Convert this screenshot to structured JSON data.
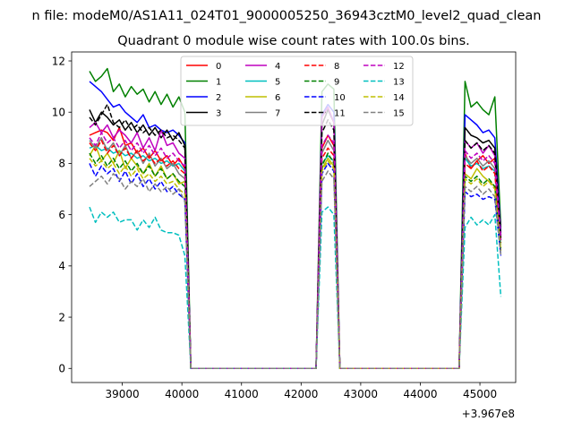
{
  "figure": {
    "suptitle": "n file: modeM0/AS1A11_024T01_9000005250_36943cztM0_level2_quad_clean",
    "title": "Quadrant 0 module wise count rates with 100.0s bins.",
    "offset_label": "+3.967e8"
  },
  "chart_data": {
    "type": "line",
    "title": "Quadrant 0 module wise count rates with 100.0s bins.",
    "xlabel": "",
    "ylabel": "",
    "x_offset": 396700000,
    "xlim": [
      38150,
      45600
    ],
    "ylim": [
      -0.55,
      12.35
    ],
    "x_ticks": [
      39000,
      40000,
      41000,
      42000,
      43000,
      44000,
      45000
    ],
    "x_tick_labels": [
      "39000",
      "40000",
      "41000",
      "42000",
      "43000",
      "44000",
      "45000"
    ],
    "y_ticks": [
      0,
      2,
      4,
      6,
      8,
      10,
      12
    ],
    "y_tick_labels": [
      "0",
      "2",
      "4",
      "6",
      "8",
      "10",
      "12"
    ],
    "grid": false,
    "legend": {
      "placement": "top-center",
      "columns": 4
    },
    "x": [
      38450,
      38550,
      38650,
      38750,
      38850,
      38950,
      39050,
      39150,
      39250,
      39350,
      39450,
      39550,
      39650,
      39750,
      39850,
      39950,
      40050,
      40150,
      40250,
      40350,
      40450,
      40550,
      40650,
      40750,
      40850,
      40950,
      41050,
      41150,
      41250,
      41350,
      41450,
      41550,
      41650,
      41750,
      41850,
      41950,
      42050,
      42150,
      42250,
      42350,
      42450,
      42550,
      42650,
      42750,
      42850,
      42950,
      43050,
      43150,
      43250,
      43350,
      43450,
      43550,
      43650,
      43750,
      43850,
      43950,
      44050,
      44150,
      44250,
      44350,
      44450,
      44550,
      44650,
      44750,
      44850,
      44950,
      45050,
      45150,
      45250,
      45350
    ],
    "series": [
      {
        "name": "0",
        "color": "#ff0000",
        "dash": "solid",
        "values": [
          9.1,
          9.2,
          9.3,
          9.2,
          8.9,
          9.4,
          8.7,
          8.8,
          8.4,
          8.6,
          8.2,
          8.5,
          8.1,
          8.3,
          7.9,
          8.2,
          7.8,
          0,
          0,
          0,
          0,
          0,
          0,
          0,
          0,
          0,
          0,
          0,
          0,
          0,
          0,
          0,
          0,
          0,
          0,
          0,
          0,
          0,
          0,
          8.6,
          9.1,
          8.7,
          0,
          0,
          0,
          0,
          0,
          0,
          0,
          0,
          0,
          0,
          0,
          0,
          0,
          0,
          0,
          0,
          0,
          0,
          0,
          0,
          0,
          8.4,
          7.8,
          8.1,
          8.3,
          8.0,
          8.2,
          5.6
        ]
      },
      {
        "name": "1",
        "color": "#008000",
        "dash": "solid",
        "values": [
          11.6,
          11.2,
          11.4,
          11.7,
          10.8,
          11.1,
          10.6,
          11.0,
          10.7,
          10.9,
          10.4,
          10.8,
          10.3,
          10.7,
          10.2,
          10.6,
          10.0,
          0,
          0,
          0,
          0,
          0,
          0,
          0,
          0,
          0,
          0,
          0,
          0,
          0,
          0,
          0,
          0,
          0,
          0,
          0,
          0,
          0,
          0,
          10.8,
          11.1,
          10.9,
          0,
          0,
          0,
          0,
          0,
          0,
          0,
          0,
          0,
          0,
          0,
          0,
          0,
          0,
          0,
          0,
          0,
          0,
          0,
          0,
          0,
          11.2,
          10.2,
          10.4,
          10.1,
          9.9,
          10.6,
          5.5
        ]
      },
      {
        "name": "2",
        "color": "#0000ff",
        "dash": "solid",
        "values": [
          11.2,
          11.0,
          10.8,
          10.5,
          10.2,
          10.3,
          10.0,
          9.8,
          9.6,
          9.9,
          9.4,
          9.5,
          9.3,
          9.2,
          9.3,
          9.1,
          8.8,
          0,
          0,
          0,
          0,
          0,
          0,
          0,
          0,
          0,
          0,
          0,
          0,
          0,
          0,
          0,
          0,
          0,
          0,
          0,
          0,
          0,
          0,
          9.9,
          10.3,
          10.0,
          0,
          0,
          0,
          0,
          0,
          0,
          0,
          0,
          0,
          0,
          0,
          0,
          0,
          0,
          0,
          0,
          0,
          0,
          0,
          0,
          0,
          9.9,
          9.7,
          9.5,
          9.2,
          9.3,
          9.0,
          5.3
        ]
      },
      {
        "name": "3",
        "color": "#000000",
        "dash": "solid",
        "values": [
          10.1,
          9.6,
          10.0,
          9.8,
          9.5,
          9.7,
          9.3,
          9.6,
          9.2,
          9.5,
          9.1,
          9.4,
          9.0,
          9.3,
          8.9,
          9.2,
          8.7,
          0,
          0,
          0,
          0,
          0,
          0,
          0,
          0,
          0,
          0,
          0,
          0,
          0,
          0,
          0,
          0,
          0,
          0,
          0,
          0,
          0,
          0,
          9.5,
          10.1,
          9.6,
          0,
          0,
          0,
          0,
          0,
          0,
          0,
          0,
          0,
          0,
          0,
          0,
          0,
          0,
          0,
          0,
          0,
          0,
          0,
          0,
          0,
          9.4,
          9.1,
          9.0,
          8.8,
          8.9,
          8.6,
          5.2
        ]
      },
      {
        "name": "4",
        "color": "#bf00bf",
        "dash": "solid",
        "values": [
          9.4,
          9.6,
          9.2,
          9.5,
          9.0,
          9.3,
          9.1,
          8.8,
          9.2,
          8.6,
          9.0,
          8.5,
          9.3,
          8.7,
          8.8,
          8.4,
          8.2,
          0,
          0,
          0,
          0,
          0,
          0,
          0,
          0,
          0,
          0,
          0,
          0,
          0,
          0,
          0,
          0,
          0,
          0,
          0,
          0,
          0,
          0,
          9.8,
          10.2,
          9.6,
          0,
          0,
          0,
          0,
          0,
          0,
          0,
          0,
          0,
          0,
          0,
          0,
          0,
          0,
          0,
          0,
          0,
          0,
          0,
          0,
          0,
          8.9,
          8.6,
          8.8,
          8.4,
          8.7,
          8.3,
          5.2
        ]
      },
      {
        "name": "5",
        "color": "#00bfbf",
        "dash": "solid",
        "values": [
          8.6,
          8.7,
          8.5,
          8.6,
          8.4,
          8.5,
          8.3,
          8.4,
          8.2,
          8.3,
          8.1,
          8.2,
          8.0,
          8.1,
          7.9,
          8.0,
          7.7,
          0,
          0,
          0,
          0,
          0,
          0,
          0,
          0,
          0,
          0,
          0,
          0,
          0,
          0,
          0,
          0,
          0,
          0,
          0,
          0,
          0,
          0,
          8.0,
          8.3,
          8.1,
          0,
          0,
          0,
          0,
          0,
          0,
          0,
          0,
          0,
          0,
          0,
          0,
          0,
          0,
          0,
          0,
          0,
          0,
          0,
          0,
          0,
          8.2,
          7.9,
          8.0,
          7.8,
          7.9,
          7.7,
          5.0
        ]
      },
      {
        "name": "6",
        "color": "#bfbf00",
        "dash": "solid",
        "values": [
          8.3,
          8.7,
          8.1,
          8.4,
          8.0,
          8.5,
          7.8,
          8.2,
          7.9,
          7.6,
          8.0,
          7.5,
          7.9,
          7.4,
          7.6,
          7.2,
          7.3,
          0,
          0,
          0,
          0,
          0,
          0,
          0,
          0,
          0,
          0,
          0,
          0,
          0,
          0,
          0,
          0,
          0,
          0,
          0,
          0,
          0,
          0,
          7.8,
          8.2,
          7.9,
          0,
          0,
          0,
          0,
          0,
          0,
          0,
          0,
          0,
          0,
          0,
          0,
          0,
          0,
          0,
          0,
          0,
          0,
          0,
          0,
          0,
          7.6,
          7.4,
          7.8,
          7.5,
          7.3,
          7.1,
          4.6
        ]
      },
      {
        "name": "7",
        "color": "#808080",
        "dash": "solid",
        "values": [
          8.9,
          8.6,
          9.0,
          8.5,
          8.8,
          8.3,
          8.7,
          8.2,
          8.5,
          8.0,
          8.4,
          7.9,
          8.2,
          7.8,
          8.0,
          7.6,
          7.4,
          0,
          0,
          0,
          0,
          0,
          0,
          0,
          0,
          0,
          0,
          0,
          0,
          0,
          0,
          0,
          0,
          0,
          0,
          0,
          0,
          0,
          0,
          8.4,
          8.9,
          8.5,
          0,
          0,
          0,
          0,
          0,
          0,
          0,
          0,
          0,
          0,
          0,
          0,
          0,
          0,
          0,
          0,
          0,
          0,
          0,
          0,
          0,
          8.3,
          8.0,
          8.2,
          7.9,
          8.1,
          7.8,
          5.0
        ]
      },
      {
        "name": "8",
        "color": "#ff0000",
        "dash": "dashed",
        "values": [
          8.8,
          8.5,
          8.9,
          8.4,
          8.7,
          8.3,
          8.6,
          8.2,
          8.5,
          8.1,
          8.3,
          8.0,
          8.2,
          7.9,
          8.1,
          7.8,
          7.6,
          0,
          0,
          0,
          0,
          0,
          0,
          0,
          0,
          0,
          0,
          0,
          0,
          0,
          0,
          0,
          0,
          0,
          0,
          0,
          0,
          0,
          0,
          8.2,
          8.6,
          8.3,
          0,
          0,
          0,
          0,
          0,
          0,
          0,
          0,
          0,
          0,
          0,
          0,
          0,
          0,
          0,
          0,
          0,
          0,
          0,
          0,
          0,
          8.0,
          7.8,
          8.1,
          7.7,
          7.9,
          7.6,
          4.9
        ]
      },
      {
        "name": "9",
        "color": "#008000",
        "dash": "dashed",
        "values": [
          8.4,
          8.0,
          8.3,
          7.9,
          8.2,
          7.8,
          8.1,
          7.7,
          8.0,
          7.6,
          7.9,
          7.5,
          7.8,
          7.4,
          7.6,
          7.3,
          7.1,
          0,
          0,
          0,
          0,
          0,
          0,
          0,
          0,
          0,
          0,
          0,
          0,
          0,
          0,
          0,
          0,
          0,
          0,
          0,
          0,
          0,
          0,
          7.9,
          8.4,
          8.0,
          0,
          0,
          0,
          0,
          0,
          0,
          0,
          0,
          0,
          0,
          0,
          0,
          0,
          0,
          0,
          0,
          0,
          0,
          0,
          0,
          0,
          7.5,
          7.3,
          7.5,
          7.2,
          7.4,
          7.1,
          4.7
        ]
      },
      {
        "name": "10",
        "color": "#0000ff",
        "dash": "dashed",
        "values": [
          8.0,
          7.5,
          7.9,
          7.6,
          7.8,
          7.3,
          7.7,
          7.2,
          7.6,
          7.1,
          7.4,
          7.0,
          7.3,
          6.9,
          7.1,
          6.8,
          6.6,
          0,
          0,
          0,
          0,
          0,
          0,
          0,
          0,
          0,
          0,
          0,
          0,
          0,
          0,
          0,
          0,
          0,
          0,
          0,
          0,
          0,
          0,
          7.6,
          8.0,
          7.7,
          0,
          0,
          0,
          0,
          0,
          0,
          0,
          0,
          0,
          0,
          0,
          0,
          0,
          0,
          0,
          0,
          0,
          0,
          0,
          0,
          0,
          6.9,
          6.7,
          6.8,
          6.6,
          6.7,
          6.6,
          4.4
        ]
      },
      {
        "name": "11",
        "color": "#000000",
        "dash": "dashed",
        "values": [
          9.8,
          9.5,
          9.9,
          10.3,
          9.6,
          9.4,
          9.7,
          9.3,
          9.5,
          9.2,
          9.4,
          9.1,
          9.3,
          9.0,
          9.1,
          8.9,
          8.6,
          0,
          0,
          0,
          0,
          0,
          0,
          0,
          0,
          0,
          0,
          0,
          0,
          0,
          0,
          0,
          0,
          0,
          0,
          0,
          0,
          0,
          0,
          9.2,
          9.7,
          9.3,
          0,
          0,
          0,
          0,
          0,
          0,
          0,
          0,
          0,
          0,
          0,
          0,
          0,
          0,
          0,
          0,
          0,
          0,
          0,
          0,
          0,
          8.9,
          8.6,
          8.8,
          8.5,
          8.7,
          8.4,
          5.1
        ]
      },
      {
        "name": "12",
        "color": "#bf00bf",
        "dash": "dashed",
        "values": [
          9.0,
          8.7,
          9.2,
          8.8,
          9.0,
          8.6,
          8.9,
          8.5,
          8.8,
          8.4,
          8.7,
          8.3,
          8.6,
          8.2,
          8.4,
          8.1,
          7.9,
          0,
          0,
          0,
          0,
          0,
          0,
          0,
          0,
          0,
          0,
          0,
          0,
          0,
          0,
          0,
          0,
          0,
          0,
          0,
          0,
          0,
          0,
          8.7,
          9.1,
          8.8,
          0,
          0,
          0,
          0,
          0,
          0,
          0,
          0,
          0,
          0,
          0,
          0,
          0,
          0,
          0,
          0,
          0,
          0,
          0,
          0,
          0,
          8.5,
          8.2,
          8.4,
          8.1,
          8.3,
          8.0,
          5.0
        ]
      },
      {
        "name": "13",
        "color": "#00bfbf",
        "dash": "dashed",
        "values": [
          6.3,
          5.7,
          6.1,
          5.9,
          6.1,
          5.7,
          5.8,
          5.8,
          5.4,
          5.8,
          5.5,
          5.9,
          5.4,
          5.3,
          5.3,
          5.2,
          4.4,
          0,
          0,
          0,
          0,
          0,
          0,
          0,
          0,
          0,
          0,
          0,
          0,
          0,
          0,
          0,
          0,
          0,
          0,
          0,
          0,
          0,
          0,
          6.1,
          6.3,
          6.0,
          0,
          0,
          0,
          0,
          0,
          0,
          0,
          0,
          0,
          0,
          0,
          0,
          0,
          0,
          0,
          0,
          0,
          0,
          0,
          0,
          0,
          5.5,
          5.9,
          5.6,
          5.8,
          5.6,
          6.0,
          2.8
        ]
      },
      {
        "name": "14",
        "color": "#bfbf00",
        "dash": "dashed",
        "values": [
          8.2,
          7.9,
          8.1,
          7.8,
          8.0,
          7.6,
          7.9,
          7.5,
          7.8,
          7.4,
          7.6,
          7.3,
          7.5,
          7.2,
          7.3,
          7.0,
          6.8,
          0,
          0,
          0,
          0,
          0,
          0,
          0,
          0,
          0,
          0,
          0,
          0,
          0,
          0,
          0,
          0,
          0,
          0,
          0,
          0,
          0,
          0,
          7.7,
          8.1,
          7.8,
          0,
          0,
          0,
          0,
          0,
          0,
          0,
          0,
          0,
          0,
          0,
          0,
          0,
          0,
          0,
          0,
          0,
          0,
          0,
          0,
          0,
          7.4,
          7.2,
          7.4,
          7.1,
          7.3,
          7.0,
          4.6
        ]
      },
      {
        "name": "15",
        "color": "#808080",
        "dash": "dashed",
        "values": [
          7.1,
          7.3,
          7.5,
          7.2,
          7.6,
          7.4,
          7.0,
          7.3,
          7.1,
          7.4,
          6.9,
          7.2,
          6.9,
          7.1,
          6.8,
          7.0,
          6.5,
          0,
          0,
          0,
          0,
          0,
          0,
          0,
          0,
          0,
          0,
          0,
          0,
          0,
          0,
          0,
          0,
          0,
          0,
          0,
          0,
          0,
          0,
          7.3,
          7.7,
          7.4,
          0,
          0,
          0,
          0,
          0,
          0,
          0,
          0,
          0,
          0,
          0,
          0,
          0,
          0,
          0,
          0,
          0,
          0,
          0,
          0,
          0,
          7.1,
          6.9,
          7.1,
          6.8,
          7.0,
          6.7,
          4.4
        ]
      }
    ]
  }
}
